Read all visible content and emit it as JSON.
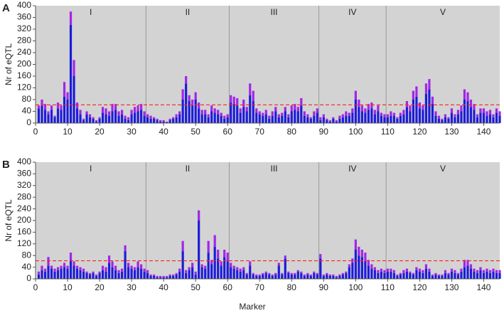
{
  "chart_data": [
    {
      "type": "bar",
      "panel_label": "A",
      "ylabel": "Nr of eQTL",
      "xlim": [
        0,
        145
      ],
      "xticks": [
        0,
        10,
        20,
        30,
        40,
        50,
        60,
        70,
        80,
        90,
        100,
        110,
        120,
        130,
        140
      ],
      "ylim": [
        0,
        400
      ],
      "yticks": [
        0,
        40,
        80,
        120,
        160,
        200,
        240,
        280,
        320,
        360,
        400
      ],
      "region_labels": [
        "I",
        "II",
        "III",
        "IV",
        "V"
      ],
      "dividers": [
        34.5,
        60.5,
        88.5,
        109.5
      ],
      "threshold": 62,
      "threshold_color": "#ff2020",
      "background": "#d3d3d3",
      "x": [
        1,
        2,
        3,
        4,
        5,
        6,
        7,
        8,
        9,
        10,
        11,
        12,
        13,
        14,
        15,
        16,
        17,
        18,
        19,
        20,
        21,
        22,
        23,
        24,
        25,
        26,
        27,
        28,
        29,
        30,
        31,
        32,
        33,
        34,
        35,
        36,
        37,
        38,
        39,
        40,
        41,
        42,
        43,
        44,
        45,
        46,
        47,
        48,
        49,
        50,
        51,
        52,
        53,
        54,
        55,
        56,
        57,
        58,
        59,
        60,
        61,
        62,
        63,
        64,
        65,
        66,
        67,
        68,
        69,
        70,
        71,
        72,
        73,
        74,
        75,
        76,
        77,
        78,
        79,
        80,
        81,
        82,
        83,
        84,
        85,
        86,
        87,
        88,
        89,
        90,
        91,
        92,
        93,
        94,
        95,
        96,
        97,
        98,
        99,
        100,
        101,
        102,
        103,
        104,
        105,
        106,
        107,
        108,
        109,
        110,
        111,
        112,
        113,
        114,
        115,
        116,
        117,
        118,
        119,
        120,
        121,
        122,
        123,
        124,
        125,
        126,
        127,
        128,
        129,
        130,
        131,
        132,
        133,
        134,
        135,
        136,
        137,
        138,
        139,
        140,
        141,
        142,
        143,
        144,
        145
      ],
      "series": [
        {
          "color": "#1c1cd8",
          "values": [
            50,
            60,
            45,
            30,
            45,
            20,
            50,
            45,
            90,
            80,
            335,
            160,
            50,
            30,
            10,
            30,
            20,
            15,
            5,
            15,
            35,
            30,
            25,
            40,
            45,
            25,
            30,
            15,
            10,
            30,
            35,
            40,
            45,
            25,
            20,
            15,
            15,
            10,
            5,
            5,
            3,
            10,
            15,
            20,
            30,
            80,
            135,
            75,
            60,
            80,
            50,
            30,
            30,
            20,
            40,
            35,
            30,
            25,
            15,
            20,
            70,
            65,
            60,
            35,
            55,
            40,
            95,
            75,
            35,
            30,
            25,
            30,
            15,
            25,
            40,
            20,
            25,
            40,
            20,
            40,
            45,
            40,
            60,
            25,
            20,
            15,
            25,
            35,
            10,
            20,
            10,
            5,
            15,
            5,
            15,
            20,
            25,
            25,
            35,
            80,
            55,
            40,
            35,
            45,
            50,
            30,
            40,
            25,
            20,
            20,
            25,
            25,
            15,
            25,
            30,
            55,
            40,
            80,
            90,
            50,
            45,
            100,
            115,
            65,
            25,
            15,
            10,
            20,
            15,
            35,
            20,
            30,
            40,
            80,
            75,
            55,
            45,
            20,
            35,
            35,
            25,
            30,
            20,
            35,
            25
          ]
        },
        {
          "color": "#a226e8",
          "values": [
            10,
            20,
            20,
            10,
            15,
            5,
            20,
            15,
            50,
            25,
            45,
            55,
            20,
            15,
            5,
            10,
            10,
            5,
            5,
            5,
            20,
            20,
            15,
            25,
            20,
            15,
            15,
            10,
            10,
            15,
            20,
            20,
            20,
            15,
            10,
            10,
            5,
            5,
            5,
            5,
            2,
            5,
            5,
            10,
            10,
            35,
            25,
            20,
            20,
            25,
            20,
            15,
            15,
            10,
            20,
            15,
            15,
            10,
            10,
            10,
            25,
            25,
            25,
            15,
            25,
            15,
            40,
            35,
            15,
            10,
            10,
            15,
            10,
            15,
            15,
            10,
            10,
            15,
            10,
            20,
            20,
            15,
            25,
            15,
            10,
            5,
            15,
            15,
            10,
            10,
            5,
            5,
            5,
            5,
            10,
            10,
            15,
            10,
            15,
            30,
            25,
            20,
            15,
            20,
            20,
            15,
            20,
            10,
            10,
            10,
            15,
            10,
            5,
            10,
            15,
            20,
            20,
            30,
            35,
            20,
            15,
            35,
            35,
            25,
            15,
            10,
            5,
            10,
            5,
            15,
            10,
            15,
            20,
            35,
            30,
            25,
            20,
            10,
            15,
            15,
            15,
            15,
            10,
            15,
            15
          ]
        }
      ]
    },
    {
      "type": "bar",
      "panel_label": "B",
      "ylabel": "Nr of eQTL",
      "xlabel": "Marker",
      "xlim": [
        0,
        145
      ],
      "xticks": [
        0,
        10,
        20,
        30,
        40,
        50,
        60,
        70,
        80,
        90,
        100,
        110,
        120,
        130,
        140
      ],
      "ylim": [
        0,
        400
      ],
      "yticks": [
        0,
        40,
        80,
        120,
        160,
        200,
        240,
        280,
        320,
        360,
        400
      ],
      "region_labels": [
        "I",
        "II",
        "III",
        "IV",
        "V"
      ],
      "dividers": [
        34.5,
        60.5,
        88.5,
        109.5
      ],
      "threshold": 62,
      "threshold_color": "#ff2020",
      "background": "#d3d3d3",
      "x": [
        1,
        2,
        3,
        4,
        5,
        6,
        7,
        8,
        9,
        10,
        11,
        12,
        13,
        14,
        15,
        16,
        17,
        18,
        19,
        20,
        21,
        22,
        23,
        24,
        25,
        26,
        27,
        28,
        29,
        30,
        31,
        32,
        33,
        34,
        35,
        36,
        37,
        38,
        39,
        40,
        41,
        42,
        43,
        44,
        45,
        46,
        47,
        48,
        49,
        50,
        51,
        52,
        53,
        54,
        55,
        56,
        57,
        58,
        59,
        60,
        61,
        62,
        63,
        64,
        65,
        66,
        67,
        68,
        69,
        70,
        71,
        72,
        73,
        74,
        75,
        76,
        77,
        78,
        79,
        80,
        81,
        82,
        83,
        84,
        85,
        86,
        87,
        88,
        89,
        90,
        91,
        92,
        93,
        94,
        95,
        96,
        97,
        98,
        99,
        100,
        101,
        102,
        103,
        104,
        105,
        106,
        107,
        108,
        109,
        110,
        111,
        112,
        113,
        114,
        115,
        116,
        117,
        118,
        119,
        120,
        121,
        122,
        123,
        124,
        125,
        126,
        127,
        128,
        129,
        130,
        131,
        132,
        133,
        134,
        135,
        136,
        137,
        138,
        139,
        140,
        141,
        142,
        143,
        144,
        145
      ],
      "series": [
        {
          "color": "#1c1cd8",
          "values": [
            15,
            30,
            25,
            45,
            35,
            25,
            30,
            35,
            40,
            35,
            65,
            45,
            35,
            30,
            25,
            20,
            15,
            20,
            10,
            20,
            30,
            25,
            55,
            40,
            30,
            20,
            25,
            95,
            40,
            35,
            30,
            40,
            35,
            25,
            20,
            10,
            10,
            5,
            5,
            5,
            5,
            10,
            10,
            15,
            25,
            95,
            20,
            30,
            40,
            15,
            200,
            40,
            35,
            90,
            50,
            110,
            70,
            45,
            75,
            60,
            40,
            35,
            30,
            25,
            30,
            15,
            45,
            15,
            10,
            10,
            15,
            20,
            15,
            10,
            15,
            45,
            15,
            70,
            20,
            15,
            15,
            25,
            20,
            10,
            15,
            10,
            20,
            15,
            70,
            10,
            15,
            10,
            10,
            5,
            10,
            15,
            20,
            40,
            55,
            100,
            80,
            75,
            60,
            45,
            35,
            30,
            20,
            25,
            20,
            25,
            25,
            20,
            10,
            15,
            20,
            25,
            20,
            15,
            30,
            25,
            20,
            35,
            25,
            10,
            15,
            10,
            10,
            20,
            15,
            25,
            20,
            15,
            25,
            40,
            45,
            35,
            25,
            20,
            30,
            20,
            25,
            20,
            25,
            20,
            20
          ]
        },
        {
          "color": "#a226e8",
          "values": [
            10,
            15,
            10,
            30,
            10,
            10,
            10,
            10,
            15,
            10,
            25,
            15,
            10,
            10,
            10,
            5,
            5,
            5,
            5,
            5,
            15,
            15,
            25,
            20,
            15,
            10,
            10,
            20,
            15,
            10,
            10,
            20,
            15,
            10,
            10,
            5,
            5,
            5,
            5,
            5,
            5,
            5,
            5,
            5,
            10,
            35,
            10,
            10,
            15,
            10,
            35,
            10,
            10,
            40,
            15,
            40,
            30,
            15,
            25,
            30,
            15,
            10,
            10,
            10,
            10,
            5,
            15,
            5,
            5,
            5,
            5,
            5,
            5,
            5,
            5,
            10,
            5,
            10,
            5,
            5,
            5,
            5,
            5,
            5,
            5,
            5,
            5,
            5,
            15,
            5,
            5,
            5,
            5,
            5,
            5,
            5,
            5,
            10,
            15,
            35,
            30,
            25,
            30,
            20,
            15,
            10,
            10,
            10,
            10,
            10,
            10,
            10,
            5,
            5,
            10,
            10,
            5,
            5,
            10,
            10,
            10,
            15,
            10,
            5,
            5,
            5,
            5,
            10,
            5,
            10,
            10,
            5,
            10,
            25,
            20,
            15,
            10,
            10,
            10,
            10,
            10,
            10,
            10,
            10,
            10
          ]
        }
      ]
    }
  ]
}
